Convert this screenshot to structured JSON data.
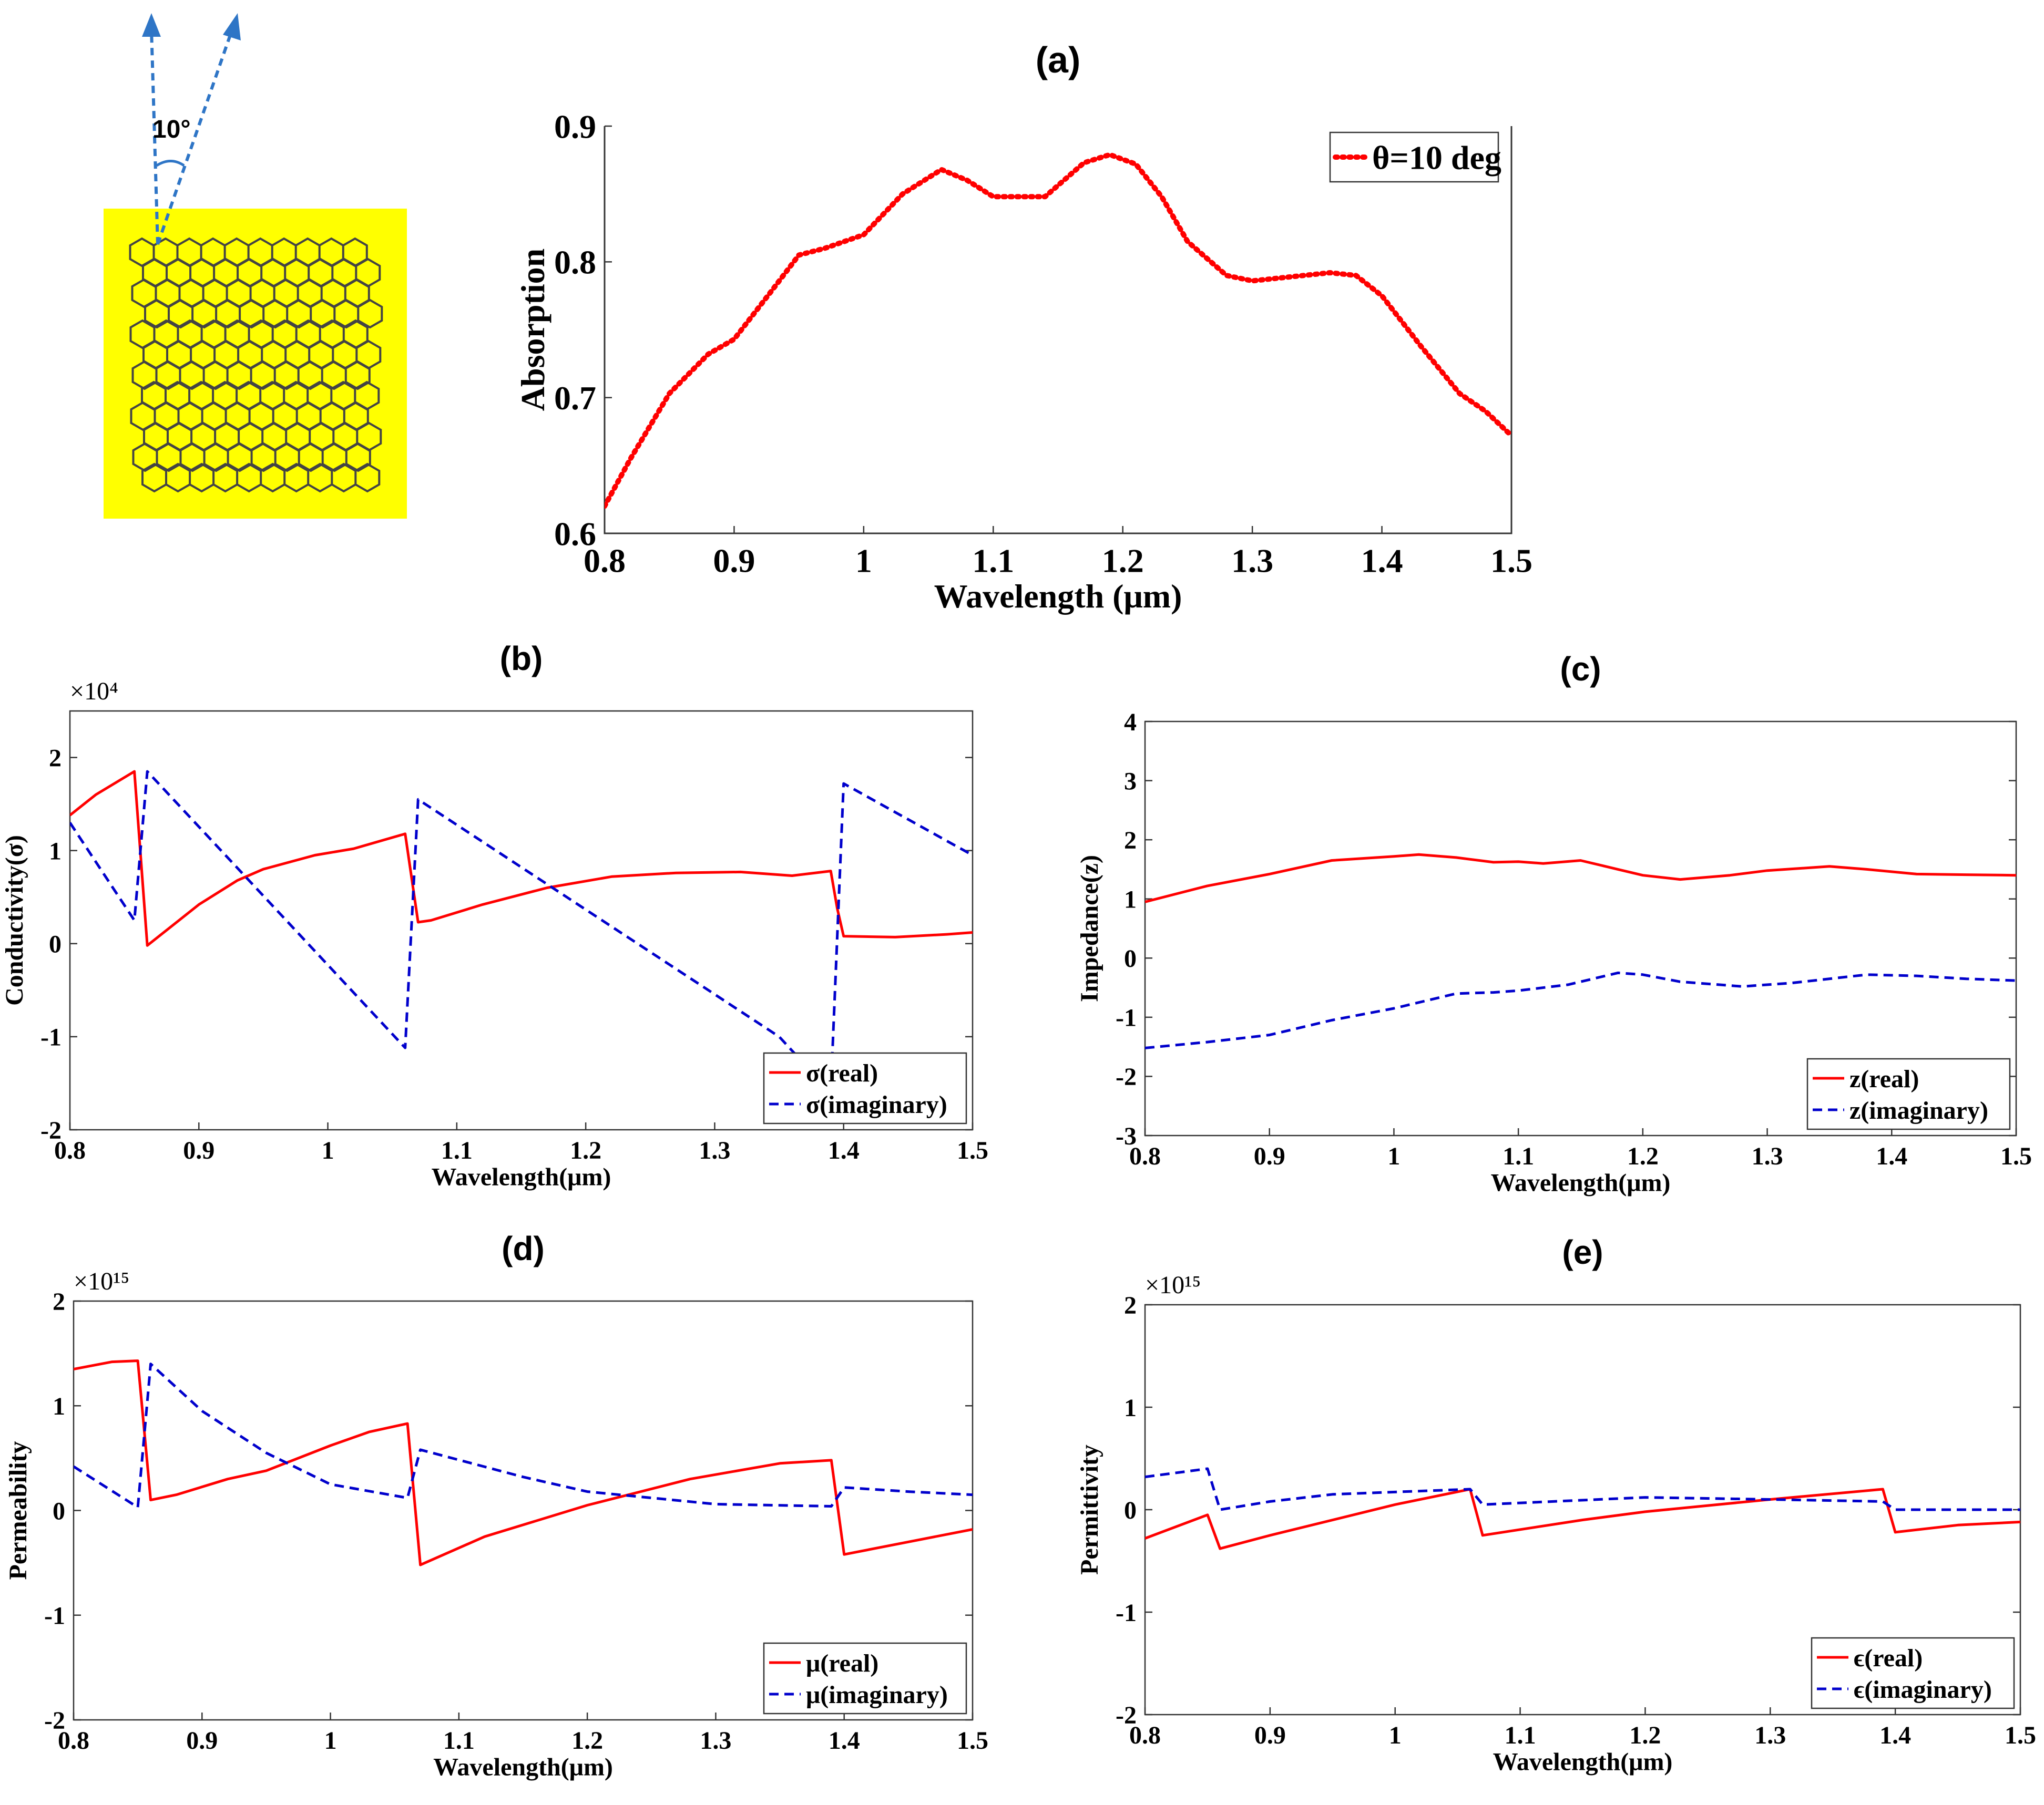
{
  "figure": {
    "panels": [
      "a",
      "b",
      "c",
      "d",
      "e"
    ],
    "schematic": {
      "angle_label": "10°",
      "background_color": "#ffff00",
      "arrow_color": "#2e75c6",
      "lattice_color": "#444444"
    },
    "colors": {
      "real": "#ff0000",
      "imaginary": "#0000cc",
      "absorption": "#ff0000"
    }
  },
  "chart_data": [
    {
      "id": "a",
      "panel_label": "(a)",
      "type": "line",
      "xlabel": "Wavelength (μm)",
      "ylabel": "Absorption",
      "xlim": [
        0.8,
        1.5
      ],
      "ylim": [
        0.6,
        0.9
      ],
      "xticks": [
        0.8,
        0.9,
        1.0,
        1.1,
        1.2,
        1.3,
        1.4,
        1.5
      ],
      "xtick_labels": [
        "0.8",
        "0.9",
        "1",
        "1.1",
        "1.2",
        "1.3",
        "1.4",
        "1.5"
      ],
      "yticks": [
        0.6,
        0.7,
        0.8,
        0.9
      ],
      "ytick_labels": [
        "0.6",
        "0.7",
        "0.8",
        "0.9"
      ],
      "multiplier": "",
      "legend": "top-right",
      "grid": false,
      "series": [
        {
          "name": "θ=10 deg",
          "color": "#ff0000",
          "style": "dotted",
          "x": [
            0.8,
            0.82,
            0.85,
            0.88,
            0.9,
            0.93,
            0.95,
            0.97,
            1.0,
            1.03,
            1.06,
            1.08,
            1.1,
            1.14,
            1.17,
            1.19,
            1.21,
            1.23,
            1.25,
            1.28,
            1.3,
            1.33,
            1.36,
            1.38,
            1.4,
            1.43,
            1.46,
            1.48,
            1.5
          ],
          "y": [
            0.62,
            0.655,
            0.703,
            0.732,
            0.743,
            0.78,
            0.805,
            0.81,
            0.82,
            0.85,
            0.868,
            0.86,
            0.848,
            0.848,
            0.873,
            0.879,
            0.872,
            0.848,
            0.815,
            0.79,
            0.786,
            0.789,
            0.792,
            0.79,
            0.775,
            0.738,
            0.703,
            0.69,
            0.672
          ]
        }
      ]
    },
    {
      "id": "b",
      "panel_label": "(b)",
      "type": "line",
      "xlabel": "Wavelength(μm)",
      "ylabel": "Conductivity(σ)",
      "xlim": [
        0.8,
        1.5
      ],
      "ylim": [
        -2,
        2.5
      ],
      "xticks": [
        0.8,
        0.9,
        1.0,
        1.1,
        1.2,
        1.3,
        1.4,
        1.5
      ],
      "xtick_labels": [
        "0.8",
        "0.9",
        "1",
        "1.1",
        "1.2",
        "1.3",
        "1.4",
        "1.5"
      ],
      "yticks": [
        -2,
        -1,
        0,
        1,
        2
      ],
      "ytick_labels": [
        "-2",
        "-1",
        "0",
        "1",
        "2"
      ],
      "multiplier": "×10⁴",
      "legend": "bottom-right",
      "grid": false,
      "series": [
        {
          "name": "σ(real)",
          "color": "#ff0000",
          "style": "solid",
          "x": [
            0.8,
            0.82,
            0.85,
            0.86,
            0.88,
            0.9,
            0.93,
            0.95,
            0.99,
            1.02,
            1.06,
            1.07,
            1.08,
            1.12,
            1.17,
            1.22,
            1.27,
            1.32,
            1.36,
            1.39,
            1.395,
            1.4,
            1.44,
            1.48,
            1.5
          ],
          "y": [
            1.38,
            1.6,
            1.85,
            -0.02,
            0.2,
            0.42,
            0.68,
            0.8,
            0.95,
            1.02,
            1.18,
            0.23,
            0.25,
            0.42,
            0.6,
            0.72,
            0.76,
            0.77,
            0.73,
            0.78,
            0.38,
            0.08,
            0.07,
            0.1,
            0.12
          ]
        },
        {
          "name": "σ(imaginary)",
          "color": "#0000cc",
          "style": "dashed",
          "x": [
            0.8,
            0.85,
            0.86,
            1.06,
            1.07,
            1.35,
            1.39,
            1.4,
            1.5
          ],
          "y": [
            1.3,
            0.25,
            1.85,
            -1.12,
            1.55,
            -1.0,
            -1.6,
            1.72,
            0.95
          ]
        }
      ]
    },
    {
      "id": "c",
      "panel_label": "(c)",
      "type": "line",
      "xlabel": "Wavelength(μm)",
      "ylabel": "Impedance(z)",
      "xlim": [
        0.8,
        1.5
      ],
      "ylim": [
        -3,
        4
      ],
      "xticks": [
        0.8,
        0.9,
        1.0,
        1.1,
        1.2,
        1.3,
        1.4,
        1.5
      ],
      "xtick_labels": [
        "0.8",
        "0.9",
        "1",
        "1.1",
        "1.2",
        "1.3",
        "1.4",
        "1.5"
      ],
      "yticks": [
        -3,
        -2,
        -1,
        0,
        1,
        2,
        3,
        4
      ],
      "ytick_labels": [
        "-3",
        "-2",
        "-1",
        "0",
        "1",
        "2",
        "3",
        "4"
      ],
      "multiplier": "",
      "legend": "bottom-right",
      "grid": false,
      "series": [
        {
          "name": "z(real)",
          "color": "#ff0000",
          "style": "solid",
          "x": [
            0.8,
            0.85,
            0.9,
            0.95,
            1.0,
            1.02,
            1.05,
            1.08,
            1.1,
            1.12,
            1.15,
            1.18,
            1.2,
            1.23,
            1.27,
            1.3,
            1.35,
            1.38,
            1.42,
            1.46,
            1.5
          ],
          "y": [
            0.95,
            1.22,
            1.42,
            1.65,
            1.72,
            1.75,
            1.7,
            1.62,
            1.63,
            1.6,
            1.65,
            1.5,
            1.4,
            1.33,
            1.4,
            1.48,
            1.55,
            1.5,
            1.42,
            1.41,
            1.4
          ]
        },
        {
          "name": "z(imaginary)",
          "color": "#0000cc",
          "style": "dashed",
          "x": [
            0.8,
            0.85,
            0.9,
            0.95,
            1.0,
            1.05,
            1.08,
            1.1,
            1.14,
            1.18,
            1.2,
            1.23,
            1.28,
            1.32,
            1.38,
            1.42,
            1.46,
            1.5
          ],
          "y": [
            -1.52,
            -1.42,
            -1.3,
            -1.05,
            -0.85,
            -0.6,
            -0.58,
            -0.55,
            -0.45,
            -0.25,
            -0.28,
            -0.4,
            -0.48,
            -0.42,
            -0.28,
            -0.3,
            -0.35,
            -0.38
          ]
        }
      ]
    },
    {
      "id": "d",
      "panel_label": "(d)",
      "type": "line",
      "xlabel": "Wavelength(μm)",
      "ylabel": "Permeability",
      "xlim": [
        0.8,
        1.5
      ],
      "ylim": [
        -2,
        2
      ],
      "xticks": [
        0.8,
        0.9,
        1.0,
        1.1,
        1.2,
        1.3,
        1.4,
        1.5
      ],
      "xtick_labels": [
        "0.8",
        "0.9",
        "1",
        "1.1",
        "1.2",
        "1.3",
        "1.4",
        "1.5"
      ],
      "yticks": [
        -2,
        -1,
        0,
        1,
        2
      ],
      "ytick_labels": [
        "-2",
        "-1",
        "0",
        "1",
        "2"
      ],
      "multiplier": "×10¹⁵",
      "legend": "bottom-right",
      "grid": false,
      "series": [
        {
          "name": "μ(real)",
          "color": "#ff0000",
          "style": "solid",
          "x": [
            0.8,
            0.83,
            0.85,
            0.86,
            0.88,
            0.92,
            0.95,
            1.0,
            1.03,
            1.06,
            1.07,
            1.12,
            1.2,
            1.28,
            1.35,
            1.39,
            1.4,
            1.45,
            1.5
          ],
          "y": [
            1.35,
            1.42,
            1.43,
            0.1,
            0.15,
            0.3,
            0.38,
            0.62,
            0.75,
            0.83,
            -0.52,
            -0.25,
            0.05,
            0.3,
            0.45,
            0.48,
            -0.42,
            -0.3,
            -0.18
          ]
        },
        {
          "name": "μ(imaginary)",
          "color": "#0000cc",
          "style": "dashed",
          "x": [
            0.8,
            0.85,
            0.86,
            0.9,
            0.95,
            1.0,
            1.06,
            1.07,
            1.15,
            1.2,
            1.3,
            1.39,
            1.4,
            1.45,
            1.5
          ],
          "y": [
            0.42,
            0.03,
            1.4,
            0.95,
            0.55,
            0.25,
            0.12,
            0.58,
            0.32,
            0.18,
            0.06,
            0.04,
            0.22,
            0.18,
            0.15
          ]
        }
      ]
    },
    {
      "id": "e",
      "panel_label": "(e)",
      "type": "line",
      "xlabel": "Wavelength(μm)",
      "ylabel": "Permittivity",
      "xlim": [
        0.8,
        1.5
      ],
      "ylim": [
        -2,
        2
      ],
      "xticks": [
        0.8,
        0.9,
        1.0,
        1.1,
        1.2,
        1.3,
        1.4,
        1.5
      ],
      "xtick_labels": [
        "0.8",
        "0.9",
        "1",
        "1.1",
        "1.2",
        "1.3",
        "1.4",
        "1.5"
      ],
      "yticks": [
        -2,
        -1,
        0,
        1,
        2
      ],
      "ytick_labels": [
        "-2",
        "-1",
        "0",
        "1",
        "2"
      ],
      "multiplier": "×10¹⁵",
      "legend": "bottom-right",
      "grid": false,
      "series": [
        {
          "name": "ϵ(real)",
          "color": "#ff0000",
          "style": "solid",
          "x": [
            0.8,
            0.85,
            0.86,
            0.9,
            1.0,
            1.06,
            1.07,
            1.15,
            1.2,
            1.3,
            1.39,
            1.4,
            1.45,
            1.5
          ],
          "y": [
            -0.28,
            -0.05,
            -0.38,
            -0.25,
            0.05,
            0.2,
            -0.25,
            -0.1,
            -0.02,
            0.1,
            0.2,
            -0.22,
            -0.15,
            -0.12
          ]
        },
        {
          "name": "ϵ(imaginary)",
          "color": "#0000cc",
          "style": "dashed",
          "x": [
            0.8,
            0.85,
            0.86,
            0.9,
            0.95,
            1.06,
            1.07,
            1.2,
            1.3,
            1.39,
            1.4,
            1.5
          ],
          "y": [
            0.32,
            0.4,
            0.0,
            0.08,
            0.15,
            0.2,
            0.05,
            0.12,
            0.1,
            0.08,
            0.0,
            0.0
          ]
        }
      ]
    }
  ]
}
